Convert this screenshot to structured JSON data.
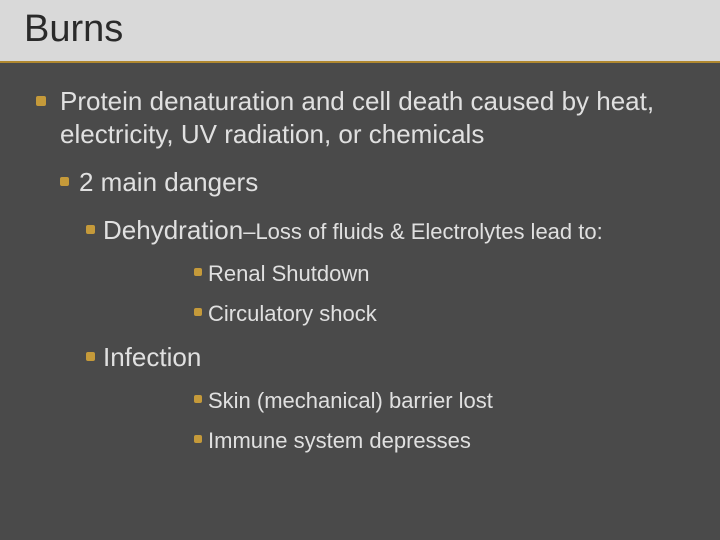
{
  "colors": {
    "slide_background": "#4a4a4a",
    "title_bar_background": "#d9d9d9",
    "title_text": "#2a2a2a",
    "body_text": "#e0e0e0",
    "bullet": "#c59a3a",
    "title_underline": "#b08830"
  },
  "typography": {
    "title_fontsize": 38,
    "body_fontsize_lvl1": 26,
    "body_fontsize_lvl2": 26,
    "body_fontsize_lvl3_main": 26,
    "body_fontsize_lvl3_sub": 22,
    "body_fontsize_lvl4": 22,
    "font_family": "Arial"
  },
  "title": "Burns",
  "bullets": {
    "lvl1_1": "Protein denaturation and cell death caused by heat, electricity, UV radiation, or chemicals",
    "lvl2_1": "2 main dangers",
    "lvl3_1_main": "Dehydration",
    "lvl3_1_sub": "–Loss of fluids & Electrolytes lead to:",
    "lvl4_1": "Renal Shutdown",
    "lvl4_2": "Circulatory shock",
    "lvl3_2": "Infection",
    "lvl4_3": "Skin (mechanical) barrier lost",
    "lvl4_4": "Immune system depresses"
  }
}
